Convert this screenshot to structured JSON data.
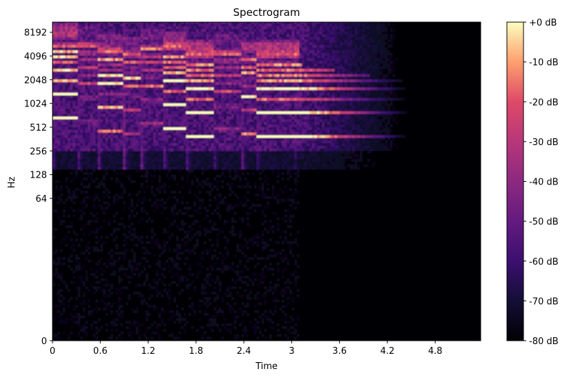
{
  "chart_data": {
    "type": "heatmap",
    "title": "Spectrogram",
    "xlabel": "Time",
    "ylabel": "Hz",
    "x_ticks": [
      "0",
      "0.6",
      "1.2",
      "1.8",
      "2.4",
      "3",
      "3.6",
      "4.2",
      "4.8"
    ],
    "x_tick_values": [
      0,
      0.6,
      1.2,
      1.8,
      2.4,
      3.0,
      3.6,
      4.2,
      4.8
    ],
    "xlim": [
      0,
      5.37
    ],
    "y_scale": "log2",
    "y_ticks": [
      "0",
      "64",
      "128",
      "256",
      "512",
      "1024",
      "2048",
      "4096",
      "8192"
    ],
    "y_tick_values": [
      0,
      64,
      128,
      256,
      512,
      1024,
      2048,
      4096,
      8192
    ],
    "ylim": [
      0,
      11025
    ],
    "colormap": "magma",
    "colorbar": {
      "ticks": [
        "+0 dB",
        "-10 dB",
        "-20 dB",
        "-30 dB",
        "-40 dB",
        "-50 dB",
        "-60 dB",
        "-70 dB",
        "-80 dB"
      ],
      "tick_values": [
        0,
        -10,
        -20,
        -30,
        -40,
        -50,
        -60,
        -70,
        -80
      ],
      "range": [
        -80,
        0
      ]
    },
    "notes_onsets_s": [
      0,
      0.32,
      0.58,
      0.9,
      1.12,
      1.4,
      1.68,
      2.02,
      2.38,
      2.56,
      3.02
    ],
    "fundamentals_hz": [
      650,
      580,
      450,
      420,
      540,
      480,
      380,
      460,
      400,
      380,
      380
    ],
    "sound_end_s": 3.1,
    "tail_end_s": 4.5
  },
  "colors": {
    "background": "#000004",
    "frame": "#000000",
    "page": "#ffffff"
  }
}
